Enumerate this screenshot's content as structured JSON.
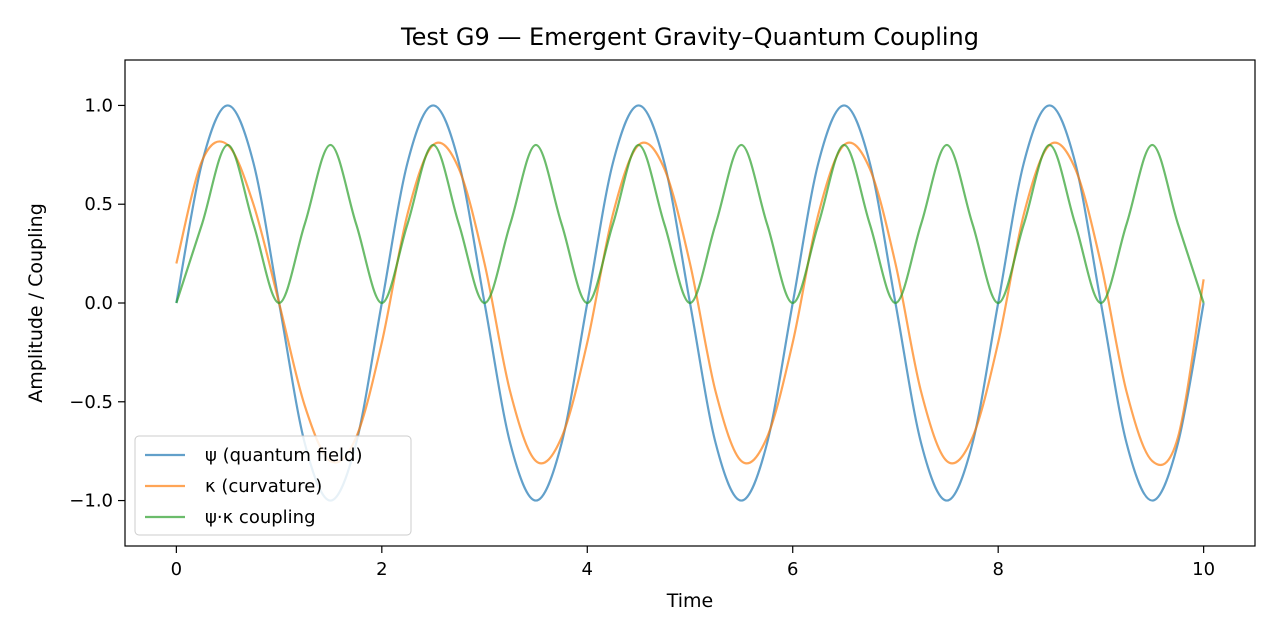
{
  "chart_data": {
    "type": "line",
    "title": "Test G9 — Emergent Gravity–Quantum Coupling",
    "xlabel": "Time",
    "ylabel": "Amplitude / Coupling",
    "xlim": [
      -0.5,
      10.5
    ],
    "ylim": [
      -1.23,
      1.23
    ],
    "xticks": [
      0,
      2,
      4,
      6,
      8,
      10
    ],
    "xtick_labels": [
      "0",
      "2",
      "4",
      "6",
      "8",
      "10"
    ],
    "yticks": [
      -1.0,
      -0.5,
      0.0,
      0.5,
      1.0
    ],
    "ytick_labels": [
      "−1.0",
      "−0.5",
      "0.0",
      "0.5",
      "1.0"
    ],
    "grid": false,
    "legend_position": "lower-left",
    "series": [
      {
        "name": "ψ (quantum field)",
        "color": "#1f77b4",
        "x": [
          0,
          0.25,
          0.5,
          0.75,
          1.0,
          1.25,
          1.5,
          1.75,
          2.0,
          2.25,
          2.5,
          2.75,
          3.0,
          3.25,
          3.5,
          3.75,
          4.0,
          4.25,
          4.5,
          4.75,
          5.0,
          5.25,
          5.5,
          5.75,
          6.0,
          6.25,
          6.5,
          6.75,
          7.0,
          7.25,
          7.5,
          7.75,
          8.0,
          8.25,
          8.5,
          8.75,
          9.0,
          9.25,
          9.5,
          9.75,
          10.0
        ],
        "y": [
          0.0,
          0.71,
          1.0,
          0.71,
          0.0,
          -0.71,
          -1.0,
          -0.71,
          0.0,
          0.71,
          1.0,
          0.71,
          0.0,
          -0.71,
          -1.0,
          -0.71,
          0.0,
          0.71,
          1.0,
          0.71,
          0.0,
          -0.71,
          -1.0,
          -0.71,
          0.0,
          0.71,
          1.0,
          0.71,
          0.0,
          -0.71,
          -1.0,
          -0.71,
          0.0,
          0.71,
          1.0,
          0.71,
          0.0,
          -0.71,
          -1.0,
          -0.71,
          0.0
        ]
      },
      {
        "name": "κ (curvature)",
        "color": "#ff7f0e",
        "x": [
          0,
          0.25,
          0.5,
          0.75,
          1.0,
          1.25,
          1.5,
          1.75,
          2.0,
          2.25,
          2.5,
          2.75,
          3.0,
          3.25,
          3.5,
          3.75,
          4.0,
          4.25,
          4.5,
          4.75,
          5.0,
          5.25,
          5.5,
          5.75,
          6.0,
          6.25,
          6.5,
          6.75,
          7.0,
          7.25,
          7.5,
          7.75,
          8.0,
          8.25,
          8.5,
          8.75,
          9.0,
          9.25,
          9.5,
          9.75,
          10.0
        ],
        "y": [
          0.2,
          0.72,
          0.8,
          0.5,
          0.0,
          -0.52,
          -0.8,
          -0.68,
          -0.2,
          0.45,
          0.8,
          0.68,
          0.2,
          -0.45,
          -0.8,
          -0.68,
          -0.2,
          0.45,
          0.8,
          0.68,
          0.2,
          -0.45,
          -0.8,
          -0.68,
          -0.2,
          0.45,
          0.8,
          0.68,
          0.2,
          -0.45,
          -0.8,
          -0.68,
          -0.2,
          0.45,
          0.8,
          0.68,
          0.2,
          -0.45,
          -0.8,
          -0.68,
          0.12
        ]
      },
      {
        "name": "ψ·κ coupling",
        "color": "#2ca02c",
        "x": [
          0,
          0.25,
          0.5,
          0.75,
          1.0,
          1.25,
          1.5,
          1.75,
          2.0,
          2.25,
          2.5,
          2.75,
          3.0,
          3.25,
          3.5,
          3.75,
          4.0,
          4.25,
          4.5,
          4.75,
          5.0,
          5.25,
          5.5,
          5.75,
          6.0,
          6.25,
          6.5,
          6.75,
          7.0,
          7.25,
          7.5,
          7.75,
          8.0,
          8.25,
          8.5,
          8.75,
          9.0,
          9.25,
          9.5,
          9.75,
          10.0
        ],
        "y": [
          0.0,
          0.4,
          0.8,
          0.4,
          0.0,
          0.4,
          0.8,
          0.4,
          0.0,
          0.4,
          0.8,
          0.4,
          0.0,
          0.4,
          0.8,
          0.4,
          0.0,
          0.4,
          0.8,
          0.4,
          0.0,
          0.4,
          0.8,
          0.4,
          0.0,
          0.4,
          0.8,
          0.4,
          0.0,
          0.4,
          0.8,
          0.4,
          0.0,
          0.4,
          0.8,
          0.4,
          0.0,
          0.4,
          0.8,
          0.4,
          0.0
        ]
      }
    ]
  }
}
